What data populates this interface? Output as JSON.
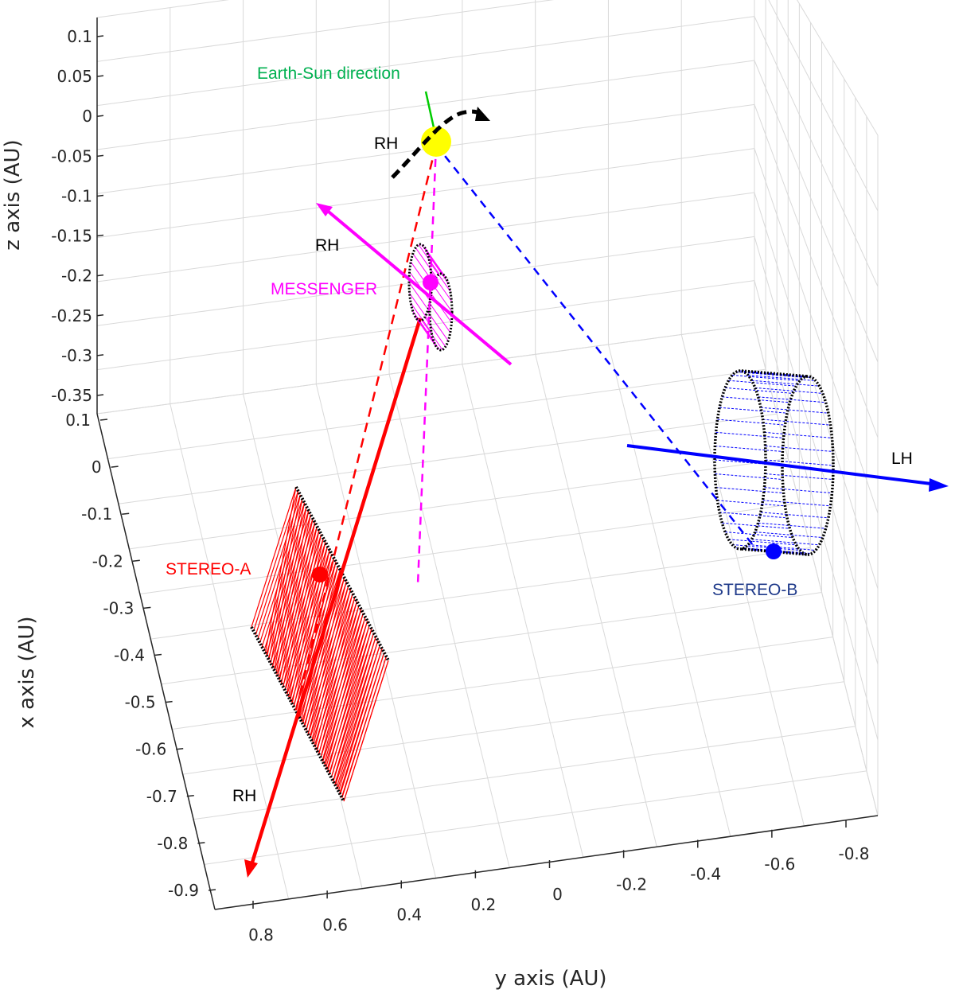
{
  "chart_data": {
    "type": "3d-diagram",
    "xlabel": "y axis (AU)",
    "ylabel": "x axis (AU)",
    "zlabel": "z axis (AU)",
    "y_ticks": [
      "0.8",
      "0.6",
      "0.4",
      "0.2",
      "0",
      "-0.2",
      "-0.4",
      "-0.6",
      "-0.8"
    ],
    "x_ticks": [
      "0.1",
      "0",
      "-0.1",
      "-0.2",
      "-0.3",
      "-0.4",
      "-0.5",
      "-0.6",
      "-0.7",
      "-0.8",
      "-0.9"
    ],
    "z_ticks": [
      "0.1",
      "0.05",
      "0",
      "-0.05",
      "-0.1",
      "-0.15",
      "-0.2",
      "-0.25",
      "-0.3",
      "-0.35"
    ],
    "grid": true,
    "annotations": {
      "earth_sun": "Earth-Sun direction",
      "rh_sun": "RH",
      "rh_messenger": "RH",
      "messenger": "MESSENGER",
      "stereo_a": "STEREO-A",
      "rh_stereo_a": "RH",
      "stereo_b": "STEREO-B",
      "lh_stereo_b": "LH"
    },
    "colors": {
      "sun": "#ffff00",
      "earth_sun": "#00cc00",
      "messenger": "#ff00ff",
      "stereo_a": "#ff0000",
      "stereo_b": "#0000ff",
      "stereo_b_label": "#1f3a8a",
      "rotation_arrow": "#000000",
      "grid": "#d9d9d9",
      "axis": "#262626"
    }
  }
}
